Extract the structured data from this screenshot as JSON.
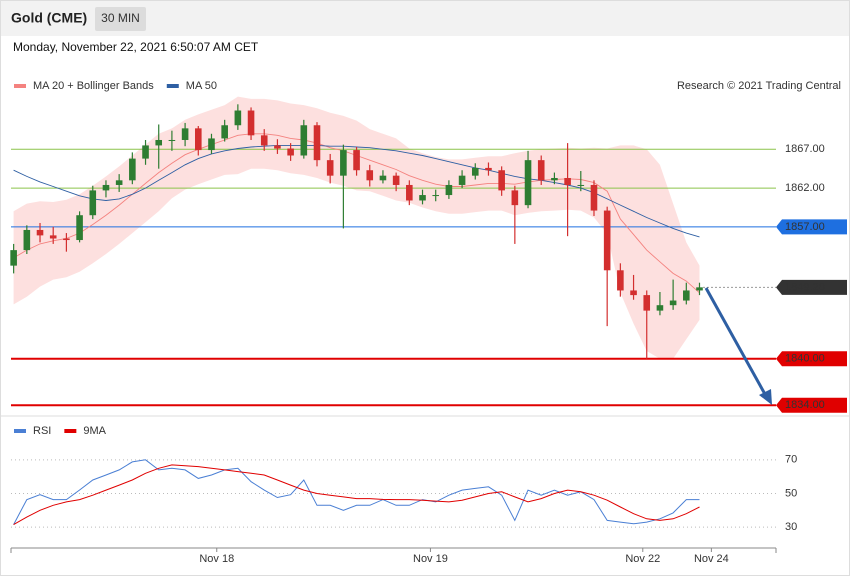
{
  "header": {
    "title": "Gold (CME)",
    "timeframe": "30 MIN",
    "timestamp": "Monday, November 22, 2021 6:50:07 AM CET"
  },
  "chart_data": [
    {
      "type": "candlestick",
      "annotation": "Research © 2021 Trading Central",
      "up_color": "#2e7d32",
      "down_color": "#d32f2f",
      "x": [
        0,
        1,
        2,
        3,
        4,
        5,
        6,
        7,
        8,
        9,
        10,
        11,
        12,
        13,
        14,
        15,
        16,
        17,
        18,
        19,
        20,
        21,
        22,
        23,
        24,
        25,
        26,
        27,
        28,
        29,
        30,
        31,
        32,
        33,
        34,
        35,
        36,
        37,
        38,
        39,
        40,
        41,
        42,
        43,
        44,
        45,
        46,
        47,
        48,
        49,
        50,
        51,
        52
      ],
      "open": [
        1852,
        1854,
        1856.6,
        1855.9,
        1855.5,
        1855.3,
        1858.5,
        1861.7,
        1862.4,
        1863,
        1865.8,
        1867.5,
        1868.2,
        1868.2,
        1869.7,
        1866.9,
        1868.4,
        1870.1,
        1872,
        1868.8,
        1867.5,
        1867.1,
        1866.2,
        1870.1,
        1865.6,
        1863.6,
        1866.9,
        1864.3,
        1863,
        1863.6,
        1862.4,
        1860.4,
        1861.1,
        1861.1,
        1862.4,
        1863.6,
        1864.6,
        1864.3,
        1861.7,
        1859.8,
        1865.6,
        1863,
        1863.3,
        1862.4,
        1862.4,
        1859.1,
        1851.4,
        1848.8,
        1848.2,
        1846.2,
        1846.9,
        1847.5,
        1848.8
      ],
      "high": [
        1854.8,
        1857.2,
        1857.5,
        1857,
        1856.2,
        1859,
        1862.3,
        1863,
        1863.8,
        1866.6,
        1868.2,
        1870.2,
        1869.4,
        1870.4,
        1870,
        1869,
        1870.8,
        1872.8,
        1872.4,
        1869.6,
        1868.3,
        1867.8,
        1870.8,
        1870.5,
        1866.4,
        1867.6,
        1867.3,
        1865,
        1864.3,
        1864,
        1863,
        1861.8,
        1861.8,
        1863,
        1864.3,
        1865.2,
        1865.3,
        1864.8,
        1862.3,
        1866.8,
        1866.2,
        1864,
        1867.8,
        1864.2,
        1863,
        1859.6,
        1852.3,
        1850.8,
        1848.8,
        1848.6,
        1850.2,
        1849.8,
        1849.8
      ],
      "low": [
        1851,
        1853.5,
        1855,
        1854.8,
        1853.8,
        1855,
        1858,
        1860.8,
        1861.5,
        1862.5,
        1865,
        1864.5,
        1866.8,
        1867.4,
        1866.2,
        1866.4,
        1868,
        1869.5,
        1868.2,
        1866.8,
        1866.4,
        1865.5,
        1865.8,
        1864.8,
        1862.6,
        1856.8,
        1863.6,
        1862.2,
        1862.6,
        1861.6,
        1859.8,
        1859.9,
        1860.3,
        1860.6,
        1862,
        1863.1,
        1863.6,
        1861,
        1854.8,
        1859.4,
        1862.4,
        1862.5,
        1855.8,
        1861.6,
        1858.4,
        1844.2,
        1848,
        1847.6,
        1840,
        1845.6,
        1846.3,
        1847,
        1848.2
      ],
      "close": [
        1854,
        1856.6,
        1855.9,
        1855.5,
        1855.3,
        1858.5,
        1861.7,
        1862.4,
        1863,
        1865.8,
        1867.5,
        1868.2,
        1868.2,
        1869.7,
        1866.9,
        1868.4,
        1870.1,
        1872,
        1868.8,
        1867.5,
        1867.1,
        1866.2,
        1870.1,
        1865.6,
        1863.6,
        1866.9,
        1864.3,
        1863,
        1863.6,
        1862.4,
        1860.4,
        1861.1,
        1861.1,
        1862.4,
        1863.6,
        1864.6,
        1864.3,
        1861.7,
        1859.8,
        1865.6,
        1863,
        1863.3,
        1862.4,
        1862.4,
        1859.1,
        1851.4,
        1848.8,
        1848.2,
        1846.2,
        1846.9,
        1847.5,
        1848.8,
        1849.2
      ],
      "series": [
        {
          "name": "MA 20 + Bollinger Bands",
          "color": "#f4827f",
          "band_color": "#fde0df",
          "values": [
            1853,
            1854,
            1854.8,
            1855.2,
            1855.5,
            1856.2,
            1857.3,
            1858.5,
            1859.8,
            1861.2,
            1862.6,
            1864,
            1865.2,
            1866.3,
            1867,
            1867.6,
            1868.2,
            1868.8,
            1869,
            1869,
            1868.8,
            1868.4,
            1868.2,
            1867.8,
            1867.2,
            1866.8,
            1866.2,
            1865.6,
            1865,
            1864.4,
            1863.6,
            1863,
            1862.5,
            1862.2,
            1862.2,
            1862.4,
            1862.6,
            1862.6,
            1862.5,
            1862.8,
            1863,
            1863.1,
            1863.2,
            1863.1,
            1862.7,
            1861.6,
            1858,
            1856,
            1854,
            1852.5,
            1851,
            1850,
            1848.5
          ],
          "upper": [
            1859,
            1860,
            1860.3,
            1860.2,
            1860.5,
            1861.2,
            1862.3,
            1863.5,
            1864.8,
            1866.2,
            1867.6,
            1869,
            1869.7,
            1870.8,
            1871.5,
            1872.1,
            1872.7,
            1873.8,
            1873.5,
            1873.5,
            1873.3,
            1872.9,
            1872.7,
            1872.3,
            1871.7,
            1871.3,
            1870.7,
            1869.6,
            1869,
            1868.4,
            1867.1,
            1866.5,
            1866,
            1865.7,
            1865.7,
            1865.9,
            1866.1,
            1866.1,
            1866.5,
            1866.8,
            1867,
            1867.1,
            1867.2,
            1867.1,
            1867.2,
            1867.1,
            1867.5,
            1867.5,
            1867,
            1865,
            1860,
            1855,
            1852
          ],
          "lower": [
            1847,
            1848,
            1849.3,
            1850.2,
            1850.5,
            1851.2,
            1852.3,
            1853.5,
            1854.8,
            1856.2,
            1857.6,
            1859,
            1860.7,
            1861.8,
            1862.5,
            1863.1,
            1863.7,
            1863.8,
            1864.5,
            1864.5,
            1864.3,
            1863.9,
            1863.7,
            1863.3,
            1862.7,
            1862.3,
            1861.7,
            1861.6,
            1861,
            1860.4,
            1860.1,
            1859.5,
            1859,
            1858.7,
            1858.7,
            1858.9,
            1859.1,
            1859.1,
            1858.5,
            1858.8,
            1859,
            1859.1,
            1859.2,
            1859.1,
            1858.2,
            1856.1,
            1848.5,
            1844.5,
            1841,
            1840,
            1840,
            1842.5,
            1845
          ]
        },
        {
          "name": "MA 50",
          "color": "#2e5fa3",
          "values": [
            1864.3,
            1863.5,
            1862.8,
            1862.2,
            1861.6,
            1861,
            1860.6,
            1860.4,
            1860.6,
            1861.2,
            1862,
            1863,
            1864,
            1865,
            1865.8,
            1866.4,
            1866.8,
            1867.1,
            1867.3,
            1867.4,
            1867.5,
            1867.5,
            1867.5,
            1867.5,
            1867.4,
            1867.4,
            1867.3,
            1867.2,
            1867,
            1866.8,
            1866.5,
            1866.2,
            1865.8,
            1865.4,
            1865,
            1864.6,
            1864.3,
            1863.9,
            1863.5,
            1863.2,
            1863,
            1862.7,
            1862.4,
            1862,
            1861.4,
            1860.6,
            1859.8,
            1859,
            1858.2,
            1857.5,
            1856.8,
            1856.2,
            1855.7
          ]
        }
      ],
      "levels": [
        {
          "value": 1867,
          "label": "1867.00",
          "color": "#8bc34a",
          "line": "solid",
          "box": false
        },
        {
          "value": 1862,
          "label": "1862.00",
          "color": "#8bc34a",
          "line": "solid",
          "box": false
        },
        {
          "value": 1857,
          "label": "1857.00",
          "color": "#1e6fe0",
          "line": "solid",
          "box": true
        },
        {
          "value": 1849.2,
          "label": "1849.20",
          "color": "#333333",
          "line": "dotted",
          "box": true
        },
        {
          "value": 1840,
          "label": "1840.00",
          "color": "#e00000",
          "line": "solid",
          "box": true
        },
        {
          "value": 1834,
          "label": "1834.00",
          "color": "#e00000",
          "line": "solid",
          "box": true
        }
      ],
      "xlim": [
        -0.2,
        57.8
      ],
      "ylim": [
        1833,
        1874
      ]
    },
    {
      "type": "line",
      "x": [
        0,
        1,
        2,
        3,
        4,
        5,
        6,
        7,
        8,
        9,
        10,
        11,
        12,
        13,
        14,
        15,
        16,
        17,
        18,
        19,
        20,
        21,
        22,
        23,
        24,
        25,
        26,
        27,
        28,
        29,
        30,
        31,
        32,
        33,
        34,
        35,
        36,
        37,
        38,
        39,
        40,
        41,
        42,
        43,
        44,
        45,
        46,
        47,
        48,
        49,
        50,
        51,
        52
      ],
      "series": [
        {
          "name": "RSI",
          "color": "#4a7fd4",
          "values": [
            31.5,
            46.4,
            49.3,
            46.4,
            46.4,
            52.1,
            58,
            61,
            64,
            68.8,
            70,
            64,
            65,
            64,
            59,
            61,
            64,
            65,
            57,
            52,
            47.6,
            49.3,
            58,
            43,
            43,
            40,
            43,
            43,
            46.4,
            43,
            43,
            46.4,
            45,
            49,
            52,
            53,
            54,
            49,
            34,
            52,
            49,
            52,
            49,
            51,
            46.4,
            34,
            33,
            32,
            33,
            35,
            38.5,
            46.4,
            46.4
          ]
        },
        {
          "name": "9MA",
          "color": "#e00000",
          "values": [
            31.5,
            36,
            40,
            43,
            45,
            46.4,
            49,
            52,
            55,
            58,
            62,
            65,
            67,
            66.5,
            66,
            65,
            64,
            63,
            62,
            61,
            58,
            55,
            52,
            50,
            49,
            48,
            47,
            47,
            46.5,
            46.4,
            46.4,
            46,
            45.5,
            45,
            46,
            48,
            50,
            51,
            48,
            45,
            47,
            50,
            52,
            51,
            49,
            46,
            42,
            38,
            35,
            34,
            35,
            38,
            42
          ]
        }
      ],
      "xlim": [
        -0.2,
        57.8
      ],
      "xticks": [
        {
          "value": 15.4,
          "label": "Nov 18"
        },
        {
          "value": 31.6,
          "label": "Nov 19"
        },
        {
          "value": 47.7,
          "label": "Nov 22"
        },
        {
          "value": 52.9,
          "label": "Nov 24"
        }
      ],
      "ylim": [
        20,
        80
      ],
      "yticks": [
        30,
        50,
        70
      ]
    }
  ]
}
